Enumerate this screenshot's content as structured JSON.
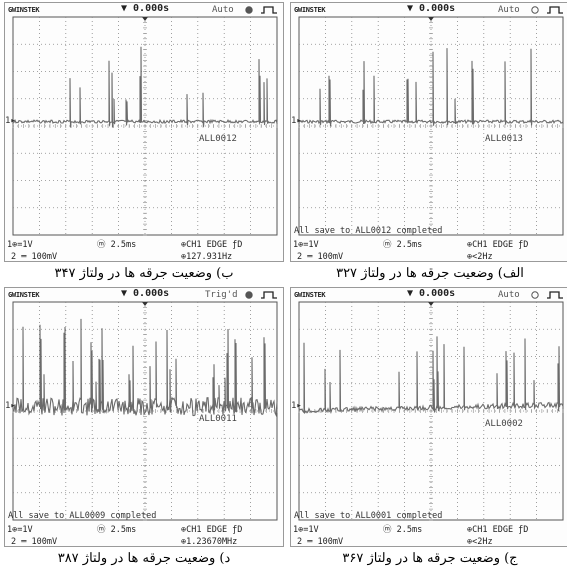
{
  "panels": [
    {
      "brand": "GWINSTEK",
      "time": "▼ 0.000s",
      "mode": "Auto",
      "mode_indicator": "filled",
      "file": "ALL0012",
      "saved": "",
      "ch1": "1⊕=1V",
      "ch2": "2 ═ 100mV",
      "timebase": "ⓜ 2.5ms",
      "trigger": "⊕CH1  EDGE  ƒD",
      "freq": "⊕127.931Hz",
      "caption": "ب) وضعیت جرقه ها در ولتاژ ۳۴۷",
      "seed": 3,
      "noise": "low"
    },
    {
      "brand": "GWINSTEK",
      "time": "▼ 0.000s",
      "mode": "Auto",
      "mode_indicator": "empty",
      "file": "ALL0013",
      "saved": "All save to ALL0012 completed",
      "ch1": "1⊕=1V",
      "ch2": "2 ═ 100mV",
      "timebase": "ⓜ 2.5ms",
      "trigger": "⊕CH1  EDGE  ƒD",
      "freq": "⊕<2Hz",
      "caption": "الف) وضعیت جرقه ها در ولتاژ ۳۲۷",
      "seed": 7,
      "noise": "low"
    },
    {
      "brand": "GWINSTEK",
      "time": "▼ 0.000s",
      "mode": "Trig'd",
      "mode_indicator": "filled",
      "file": "ALL0011",
      "saved": "All save to ALL0009 completed",
      "ch1": "1⊕=1V",
      "ch2": "2 ═ 100mV",
      "timebase": "ⓜ 2.5ms",
      "trigger": "⊕CH1  EDGE  ƒD",
      "freq": "⊕1.23670MHz",
      "caption": "د) وضعیت جرقه ها در ولتاژ ۳۸۷",
      "seed": 11,
      "noise": "high"
    },
    {
      "brand": "GWINSTEK",
      "time": "▼ 0.000s",
      "mode": "Auto",
      "mode_indicator": "empty",
      "file": "ALL0002",
      "saved": "All save to ALL0001 completed",
      "ch1": "1⊕=1V",
      "ch2": "2 ═ 100mV",
      "timebase": "ⓜ 2.5ms",
      "trigger": "⊕CH1  EDGE  ƒD",
      "freq": "⊕<2Hz",
      "caption": "ج) وضعیت جرقه ها در ولتاژ ۳۶۷",
      "seed": 5,
      "noise": "mid"
    }
  ]
}
